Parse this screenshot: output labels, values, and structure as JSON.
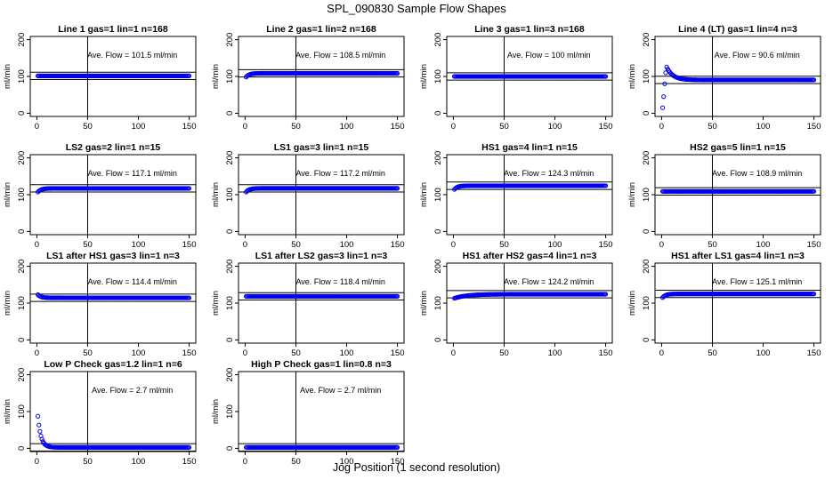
{
  "title": "SPL_090830  Sample Flow Shapes",
  "xlabel": "Jog Position (1 second resolution)",
  "ylabel": "ml/min",
  "flow_prefix": "Ave. Flow = ",
  "flow_unit": "ml/min",
  "colors": {
    "points": "#0000ee",
    "axes": "#000000"
  },
  "chart_data": [
    {
      "type": "scatter",
      "title": "Line 1 gas=1 lin=1 n=168",
      "ave_flow": "101.5",
      "flow_value": 101.5,
      "shape": "flat",
      "xlim": [
        0,
        150
      ],
      "ylim": [
        0,
        200
      ],
      "x_ticks": [
        0,
        50,
        100,
        150
      ],
      "y_ticks": [
        0,
        100,
        200
      ]
    },
    {
      "type": "scatter",
      "title": "Line 2 gas=1 lin=2 n=168",
      "ave_flow": "108.5",
      "flow_value": 108.5,
      "shape": "rise",
      "xlim": [
        0,
        150
      ],
      "ylim": [
        0,
        200
      ],
      "x_ticks": [
        0,
        50,
        100,
        150
      ],
      "y_ticks": [
        0,
        100,
        200
      ]
    },
    {
      "type": "scatter",
      "title": "Line 3 gas=1 lin=3 n=168",
      "ave_flow": "100",
      "flow_value": 100,
      "shape": "flat",
      "xlim": [
        0,
        150
      ],
      "ylim": [
        0,
        200
      ],
      "x_ticks": [
        0,
        50,
        100,
        150
      ],
      "y_ticks": [
        0,
        100,
        200
      ]
    },
    {
      "type": "scatter",
      "title": "Line 4 (LT) gas=1 lin=4 n=3",
      "ave_flow": "90.6",
      "flow_value": 90.6,
      "shape": "overshoot",
      "xlim": [
        0,
        150
      ],
      "ylim": [
        0,
        200
      ],
      "x_ticks": [
        0,
        50,
        100,
        150
      ],
      "y_ticks": [
        0,
        100,
        200
      ]
    },
    {
      "type": "scatter",
      "title": "LS2 gas=2 lin=1 n=15",
      "ave_flow": "117.1",
      "flow_value": 117.1,
      "shape": "rise",
      "xlim": [
        0,
        150
      ],
      "ylim": [
        0,
        200
      ],
      "x_ticks": [
        0,
        50,
        100,
        150
      ],
      "y_ticks": [
        0,
        100,
        200
      ]
    },
    {
      "type": "scatter",
      "title": "LS1 gas=3 lin=1 n=15",
      "ave_flow": "117.2",
      "flow_value": 117.2,
      "shape": "rise",
      "xlim": [
        0,
        150
      ],
      "ylim": [
        0,
        200
      ],
      "x_ticks": [
        0,
        50,
        100,
        150
      ],
      "y_ticks": [
        0,
        100,
        200
      ]
    },
    {
      "type": "scatter",
      "title": "HS1 gas=4 lin=1 n=15",
      "ave_flow": "124.3",
      "flow_value": 124.3,
      "shape": "rise",
      "xlim": [
        0,
        150
      ],
      "ylim": [
        0,
        200
      ],
      "x_ticks": [
        0,
        50,
        100,
        150
      ],
      "y_ticks": [
        0,
        100,
        200
      ]
    },
    {
      "type": "scatter",
      "title": "HS2 gas=5 lin=1 n=15",
      "ave_flow": "108.9",
      "flow_value": 108.9,
      "shape": "flat",
      "xlim": [
        0,
        150
      ],
      "ylim": [
        0,
        200
      ],
      "x_ticks": [
        0,
        50,
        100,
        150
      ],
      "y_ticks": [
        0,
        100,
        200
      ]
    },
    {
      "type": "scatter",
      "title": "LS1 after HS1 gas=3 lin=1 n=3",
      "ave_flow": "114.4",
      "flow_value": 114.4,
      "shape": "fall",
      "xlim": [
        0,
        150
      ],
      "ylim": [
        0,
        200
      ],
      "x_ticks": [
        0,
        50,
        100,
        150
      ],
      "y_ticks": [
        0,
        100,
        200
      ]
    },
    {
      "type": "scatter",
      "title": "LS1 after LS2 gas=3 lin=1 n=3",
      "ave_flow": "118.4",
      "flow_value": 118.4,
      "shape": "flat",
      "xlim": [
        0,
        150
      ],
      "ylim": [
        0,
        200
      ],
      "x_ticks": [
        0,
        50,
        100,
        150
      ],
      "y_ticks": [
        0,
        100,
        200
      ]
    },
    {
      "type": "scatter",
      "title": "HS1 after HS2 gas=4 lin=1 n=3",
      "ave_flow": "124.2",
      "flow_value": 124.2,
      "shape": "slowrise",
      "xlim": [
        0,
        150
      ],
      "ylim": [
        0,
        200
      ],
      "x_ticks": [
        0,
        50,
        100,
        150
      ],
      "y_ticks": [
        0,
        100,
        200
      ]
    },
    {
      "type": "scatter",
      "title": "HS1 after LS1 gas=4 lin=1 n=3",
      "ave_flow": "125.1",
      "flow_value": 125.1,
      "shape": "rise",
      "xlim": [
        0,
        150
      ],
      "ylim": [
        0,
        200
      ],
      "x_ticks": [
        0,
        50,
        100,
        150
      ],
      "y_ticks": [
        0,
        100,
        200
      ]
    },
    {
      "type": "scatter",
      "title": "Low P Check gas=1.2 lin=1 n=6",
      "ave_flow": "2.7",
      "flow_value": 2.7,
      "shape": "decay",
      "xlim": [
        0,
        150
      ],
      "ylim": [
        0,
        200
      ],
      "x_ticks": [
        0,
        50,
        100,
        150
      ],
      "y_ticks": [
        0,
        100,
        200
      ]
    },
    {
      "type": "scatter",
      "title": "High P Check gas=1 lin=0.8 n=3",
      "ave_flow": "2.7",
      "flow_value": 2.7,
      "shape": "flat",
      "xlim": [
        0,
        150
      ],
      "ylim": [
        0,
        200
      ],
      "x_ticks": [
        0,
        50,
        100,
        150
      ],
      "y_ticks": [
        0,
        100,
        200
      ]
    }
  ]
}
